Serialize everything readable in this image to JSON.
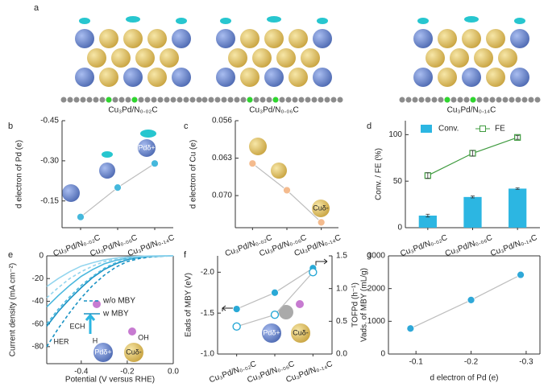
{
  "panel_a": {
    "label": "a",
    "captions": [
      "Cu₃Pd/N₀.₀₂C",
      "Cu₃Pd/N₀.₀₆C",
      "Cu₃Pd/N₀.₁₄C"
    ]
  },
  "chart_data": [
    {
      "type": "line",
      "label": "b",
      "categories": [
        "Cu₃Pd/N₀.₀₂C",
        "Cu₃Pd/N₀.₀₆C",
        "Cu₃Pd/N₀.₁₄C"
      ],
      "ylabel": "d electron of Pd (e)",
      "ylim": [
        -0.05,
        -0.45
      ],
      "yticks": [
        -0.45,
        {
          "value": -0.3,
          "label": "-0.30"
        },
        -0.15
      ],
      "series": [
        {
          "color": "#45b8dc",
          "line_color": "#bdbdbd",
          "marker": "circle",
          "values": [
            -0.09,
            -0.2,
            -0.29
          ]
        }
      ],
      "annotations": [
        "Pdδ+"
      ]
    },
    {
      "type": "line",
      "label": "c",
      "categories": [
        "Cu₃Pd/N₀.₀₂C",
        "Cu₃Pd/N₀.₀₆C",
        "Cu₃Pd/N₀.₁₄C"
      ],
      "ylabel": "d electron of Cu (e)",
      "ylim": [
        0.076,
        0.056
      ],
      "yticks": [
        0.056,
        0.063,
        {
          "value": 0.07,
          "label": "0.070"
        }
      ],
      "series": [
        {
          "color": "#f4bb8e",
          "line_color": "#bdbdbd",
          "marker": "circle",
          "values": [
            0.064,
            0.069,
            0.075
          ]
        }
      ],
      "annotations": [
        "Cuδ-"
      ]
    },
    {
      "type": "bar",
      "label": "d",
      "categories": [
        "Cu₃Pd/N₀.₀₂C",
        "Cu₃Pd/N₀.₀₆C",
        "Cu₃Pd/N₀.₁₄C"
      ],
      "ylabel": "Conv. / FE (%)",
      "ylim": [
        0,
        115
      ],
      "yticks": [
        0,
        50,
        100
      ],
      "series": [
        {
          "name": "Conv.",
          "type": "bar",
          "color": "#2cb6e2",
          "values": [
            13,
            33,
            42
          ],
          "errors": [
            1.5,
            1,
            0.8
          ]
        },
        {
          "name": "FE",
          "type": "line",
          "color": "#3f9b3f",
          "marker": "square-open",
          "values": [
            56,
            80,
            97
          ],
          "errors": [
            3,
            3,
            2
          ]
        }
      ]
    },
    {
      "type": "line",
      "label": "e",
      "xlabel": "Potential (V versus RHE)",
      "ylabel": "Current density (mA cm⁻²)",
      "x": [
        -0.55,
        -0.5,
        -0.45,
        -0.4,
        -0.35,
        -0.3,
        -0.25,
        -0.2,
        -0.15,
        -0.1,
        -0.05,
        0
      ],
      "xlim": [
        -0.55,
        0
      ],
      "xticks": [
        -0.4,
        -0.2,
        {
          "value": 0,
          "label": "0.0"
        }
      ],
      "ylim": [
        -95,
        0
      ],
      "yticks": [
        -80,
        -60,
        -40,
        -20,
        0
      ],
      "series": [
        {
          "color": "#1a93c4",
          "dash": true,
          "values": [
            -80,
            -64,
            -50,
            -37,
            -26,
            -17,
            -10,
            -5,
            -2.5,
            -1,
            -0.3,
            0
          ]
        },
        {
          "color": "#1a93c4",
          "values": [
            -62,
            -49,
            -38,
            -28,
            -19,
            -12,
            -7,
            -3.5,
            -1.5,
            -0.6,
            -0.2,
            0
          ]
        },
        {
          "color": "#4bb8de",
          "dash": true,
          "values": [
            -60,
            -47,
            -36,
            -26,
            -18,
            -11,
            -6,
            -3,
            -1.3,
            -0.5,
            -0.2,
            0
          ]
        },
        {
          "color": "#4bb8de",
          "values": [
            -45,
            -35,
            -26,
            -18,
            -12,
            -7,
            -4,
            -2,
            -0.8,
            -0.3,
            -0.1,
            0
          ]
        },
        {
          "color": "#93d5ee",
          "dash": true,
          "values": [
            -37,
            -28,
            -20,
            -14,
            -9,
            -5,
            -3,
            -1.5,
            -0.6,
            -0.2,
            0,
            0
          ]
        },
        {
          "color": "#93d5ee",
          "values": [
            -27,
            -20,
            -14,
            -9,
            -6,
            -3.5,
            -2,
            -1,
            -0.4,
            -0.1,
            0,
            0
          ]
        }
      ],
      "legend": [
        {
          "label": "w/o MBY",
          "dash": true,
          "color": "#1a93c4"
        },
        {
          "label": "w MBY",
          "color": "#1a93c4"
        }
      ],
      "annotations": [
        "ECH",
        "HER",
        "H",
        "OH",
        "Pdδ+",
        "Cuδ-"
      ]
    },
    {
      "type": "line",
      "label": "f",
      "categories": [
        "Cu₃Pd/N₀.₀₂C",
        "Cu₃Pd/N₀.₀₆C",
        "Cu₃Pd/N₀.₁₄C"
      ],
      "ylabel": "Eads of MBY (eV)",
      "ylim": [
        -1.0,
        -2.2
      ],
      "yticks": [
        {
          "value": -2,
          "label": "-2.0"
        },
        -1.5,
        {
          "value": -1,
          "label": "-1.0"
        }
      ],
      "y2label": "Vads. of MBY (mL/g)",
      "y2lim": [
        0,
        1.5
      ],
      "y2ticks": [
        {
          "value": 0,
          "label": "0.0"
        },
        0.5,
        {
          "value": 1,
          "label": "1.0"
        },
        1.5
      ],
      "series": [
        {
          "color": "#29a9d6",
          "line_color": "#bdbdbd",
          "marker": "circle",
          "values": [
            -1.55,
            -1.75,
            -2.05
          ]
        },
        {
          "color": "#29a9d6",
          "line_color": "#bdbdbd",
          "marker": "circle-open",
          "axis": "y2",
          "values": [
            0.42,
            0.6,
            1.25
          ]
        }
      ],
      "annotations": [
        "Pdδ+",
        "Cuδ-"
      ]
    },
    {
      "type": "scatter",
      "label": "g",
      "xlabel": "d electron of Pd (e)",
      "ylabel": "TOFPd (h⁻¹)",
      "x": [
        -0.09,
        -0.2,
        -0.29
      ],
      "xlim": [
        -0.05,
        -0.325
      ],
      "xticks": [
        -0.1,
        -0.2,
        -0.3
      ],
      "ylim": [
        0,
        3000
      ],
      "yticks": [
        0,
        1000,
        2000,
        3000
      ],
      "series": [
        {
          "color": "#2fa8d8",
          "line_color": "#bdbdbd",
          "marker": "circle",
          "values": [
            780,
            1650,
            2420
          ]
        }
      ]
    }
  ]
}
